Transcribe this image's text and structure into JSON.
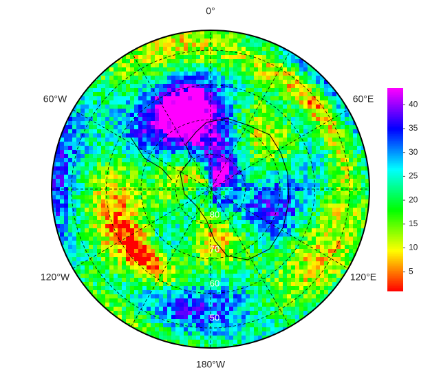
{
  "map": {
    "longitude_labels": [
      "0°",
      "60°E",
      "120°E",
      "180°W",
      "120°W",
      "60°W"
    ],
    "latitude_labels": [
      "80",
      "70",
      "60",
      "50"
    ],
    "colorbar": {
      "lim": [
        1,
        43.5
      ],
      "ticks": [
        5,
        10,
        15,
        20,
        25,
        30,
        35,
        40
      ]
    }
  }
}
